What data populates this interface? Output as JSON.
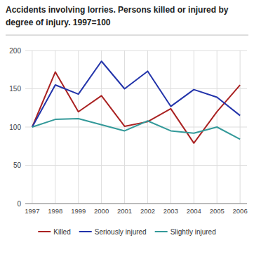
{
  "chart_data": {
    "type": "line",
    "title": "Accidents involving lorries. Persons killed or injured by",
    "subtitle": "degree of injury.  1997=100",
    "x": [
      1997,
      1998,
      1999,
      2000,
      2001,
      2002,
      2003,
      2004,
      2005,
      2006
    ],
    "series": [
      {
        "name": "Killed",
        "color": "#aa2222",
        "values": [
          100,
          172,
          120,
          141,
          101,
          107,
          124,
          79,
          120,
          155
        ]
      },
      {
        "name": "Seriously injured",
        "color": "#2233aa",
        "values": [
          100,
          155,
          143,
          186,
          150,
          173,
          127,
          149,
          139,
          115
        ]
      },
      {
        "name": "Slightly injured",
        "color": "#339999",
        "values": [
          100,
          110,
          111,
          103,
          95,
          108,
          95,
          92,
          100,
          84
        ]
      }
    ],
    "xlim": [
      1996.7,
      2006.3
    ],
    "xticks": [
      1997,
      1998,
      1999,
      2000,
      2001,
      2002,
      2003,
      2004,
      2005,
      2006
    ],
    "ylim": [
      0,
      200
    ],
    "yticks": [
      0,
      50,
      100,
      150,
      200
    ],
    "grid": true,
    "legend": "bottom"
  }
}
